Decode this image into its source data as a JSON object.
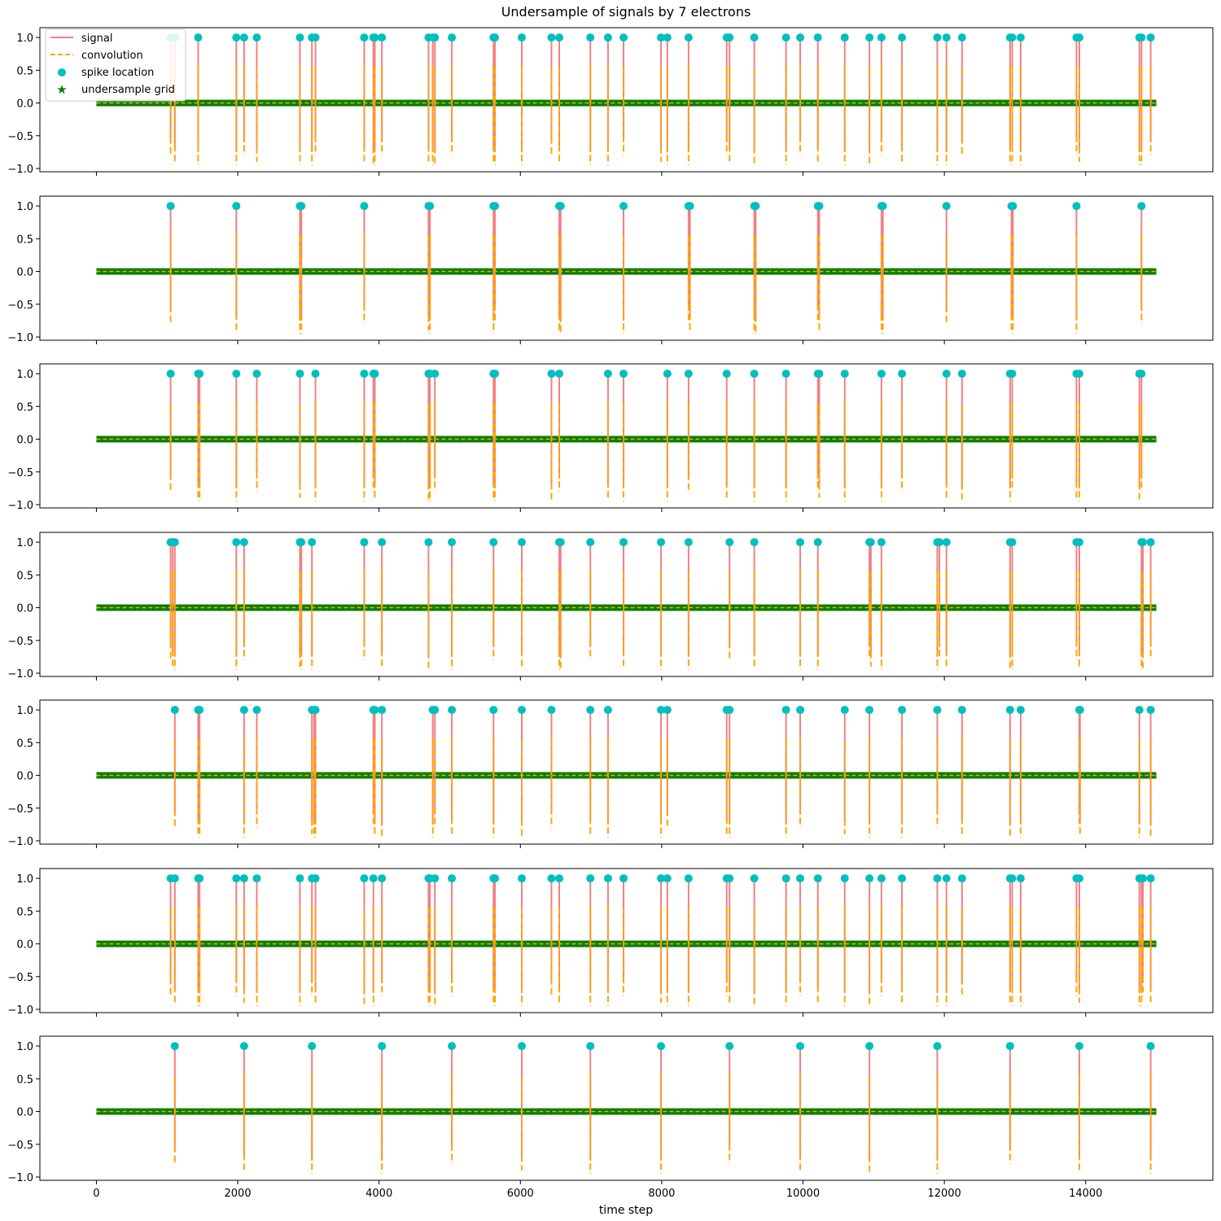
{
  "chart_data": {
    "type": "line",
    "title": "Undersample of signals by 7 electrons",
    "xlabel": "time step",
    "ylabel": "",
    "xlim": [
      -800,
      15800
    ],
    "ylim": [
      -1.05,
      1.15
    ],
    "x_ticks": [
      0,
      2000,
      4000,
      6000,
      8000,
      10000,
      12000,
      14000
    ],
    "y_ticks": [
      1.0,
      0.5,
      0.0,
      -0.5,
      -1.0
    ],
    "grid": false,
    "legend_position": "top-left",
    "colors": {
      "signal": "#f08080",
      "convolution": "#ffa500",
      "spike_location": "#00bfbf",
      "undersample_grid": "#008000"
    },
    "legend": [
      {
        "key": "signal",
        "label": "signal",
        "style": "line"
      },
      {
        "key": "convolution",
        "label": "convolution",
        "style": "dashed"
      },
      {
        "key": "spike_location",
        "label": "spike location",
        "style": "dot"
      },
      {
        "key": "undersample_grid",
        "label": "undersample grid",
        "style": "star"
      }
    ],
    "undersample_grid": {
      "start": 0,
      "end": 15000,
      "value": 0.0
    },
    "panels": [
      {
        "spikes": [
          1050,
          1110,
          1440,
          1980,
          2090,
          2270,
          2880,
          3050,
          3100,
          3790,
          3920,
          3940,
          4040,
          4700,
          4760,
          4790,
          5030,
          5620,
          5640,
          6020,
          6440,
          6550,
          6990,
          7240,
          7460,
          7990,
          8080,
          8380,
          8920,
          8960,
          9310,
          9760,
          9960,
          10210,
          10590,
          10940,
          11110,
          11400,
          11900,
          12030,
          12250,
          12930,
          12960,
          13080,
          13870,
          13910,
          14760,
          14790,
          14920
        ]
      },
      {
        "spikes": [
          1050,
          1980,
          2880,
          2900,
          3790,
          4700,
          4720,
          5620,
          5640,
          6550,
          6570,
          7460,
          8380,
          8400,
          9310,
          9330,
          10210,
          10230,
          11110,
          11130,
          12030,
          12950,
          12970,
          13870,
          14790
        ]
      },
      {
        "spikes": [
          1050,
          1440,
          1460,
          1980,
          2270,
          2880,
          3100,
          3790,
          3920,
          3940,
          4700,
          4720,
          4790,
          5620,
          5640,
          6440,
          6550,
          7240,
          7460,
          8080,
          8380,
          8920,
          9310,
          9760,
          10210,
          10230,
          10590,
          11110,
          11400,
          12030,
          12250,
          12930,
          12960,
          13870,
          13910,
          14760,
          14790
        ]
      },
      {
        "spikes": [
          1050,
          1080,
          1110,
          1980,
          2090,
          2880,
          2900,
          3050,
          3790,
          4040,
          4700,
          5030,
          5620,
          6020,
          6550,
          6570,
          6990,
          7460,
          7990,
          8380,
          8960,
          9310,
          9960,
          10210,
          10940,
          10960,
          11110,
          11900,
          11930,
          12030,
          12930,
          12960,
          13870,
          13910,
          14790,
          14810,
          14920
        ]
      },
      {
        "spikes": [
          1110,
          1440,
          1460,
          2090,
          2270,
          3050,
          3080,
          3100,
          3920,
          3940,
          4040,
          4760,
          4790,
          5030,
          5620,
          6020,
          6440,
          6990,
          7240,
          7990,
          8080,
          8920,
          8960,
          9760,
          9960,
          10590,
          10940,
          11400,
          11900,
          12250,
          12930,
          13080,
          13910,
          13920,
          14760,
          14920
        ]
      },
      {
        "spikes": [
          1050,
          1110,
          1440,
          1460,
          1980,
          2090,
          2270,
          2880,
          3050,
          3100,
          3790,
          3920,
          4040,
          4700,
          4720,
          4790,
          5030,
          5620,
          5640,
          6020,
          6440,
          6550,
          6990,
          7240,
          7460,
          7990,
          8080,
          8380,
          8920,
          8960,
          9310,
          9760,
          9960,
          10210,
          10590,
          10940,
          11110,
          11400,
          11900,
          12030,
          12250,
          12930,
          12960,
          13080,
          13870,
          13910,
          14760,
          14790,
          14810,
          14920
        ]
      },
      {
        "spikes": [
          1110,
          2090,
          3050,
          4040,
          5030,
          6020,
          6990,
          7990,
          8960,
          9960,
          10940,
          11900,
          12930,
          13910,
          14920
        ]
      }
    ]
  }
}
